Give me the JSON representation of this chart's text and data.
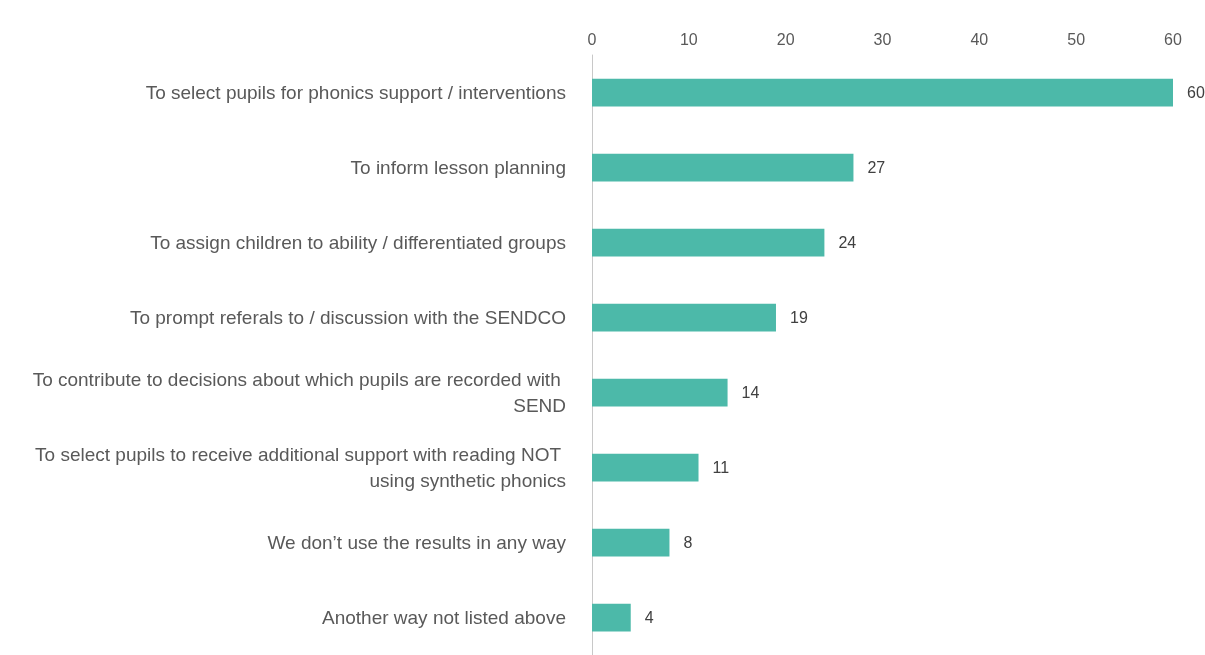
{
  "chart_data": {
    "type": "bar",
    "orientation": "horizontal",
    "categories": [
      "To select pupils for phonics support / interventions",
      "To inform lesson planning",
      "To assign children to ability / differentiated groups",
      "To prompt referals to / discussion with the SENDCO",
      "To contribute to decisions about which pupils are recorded with SEND",
      "To select pupils to receive additional support with reading NOT using synthetic phonics",
      "We don’t use the results in any way",
      "Another way not listed above"
    ],
    "values": [
      60,
      27,
      24,
      19,
      14,
      11,
      8,
      4
    ],
    "color": "#4cb9a9",
    "xlim": [
      0,
      60
    ],
    "xticks": [
      0,
      10,
      20,
      30,
      40,
      50,
      60
    ],
    "data_labels": true
  }
}
